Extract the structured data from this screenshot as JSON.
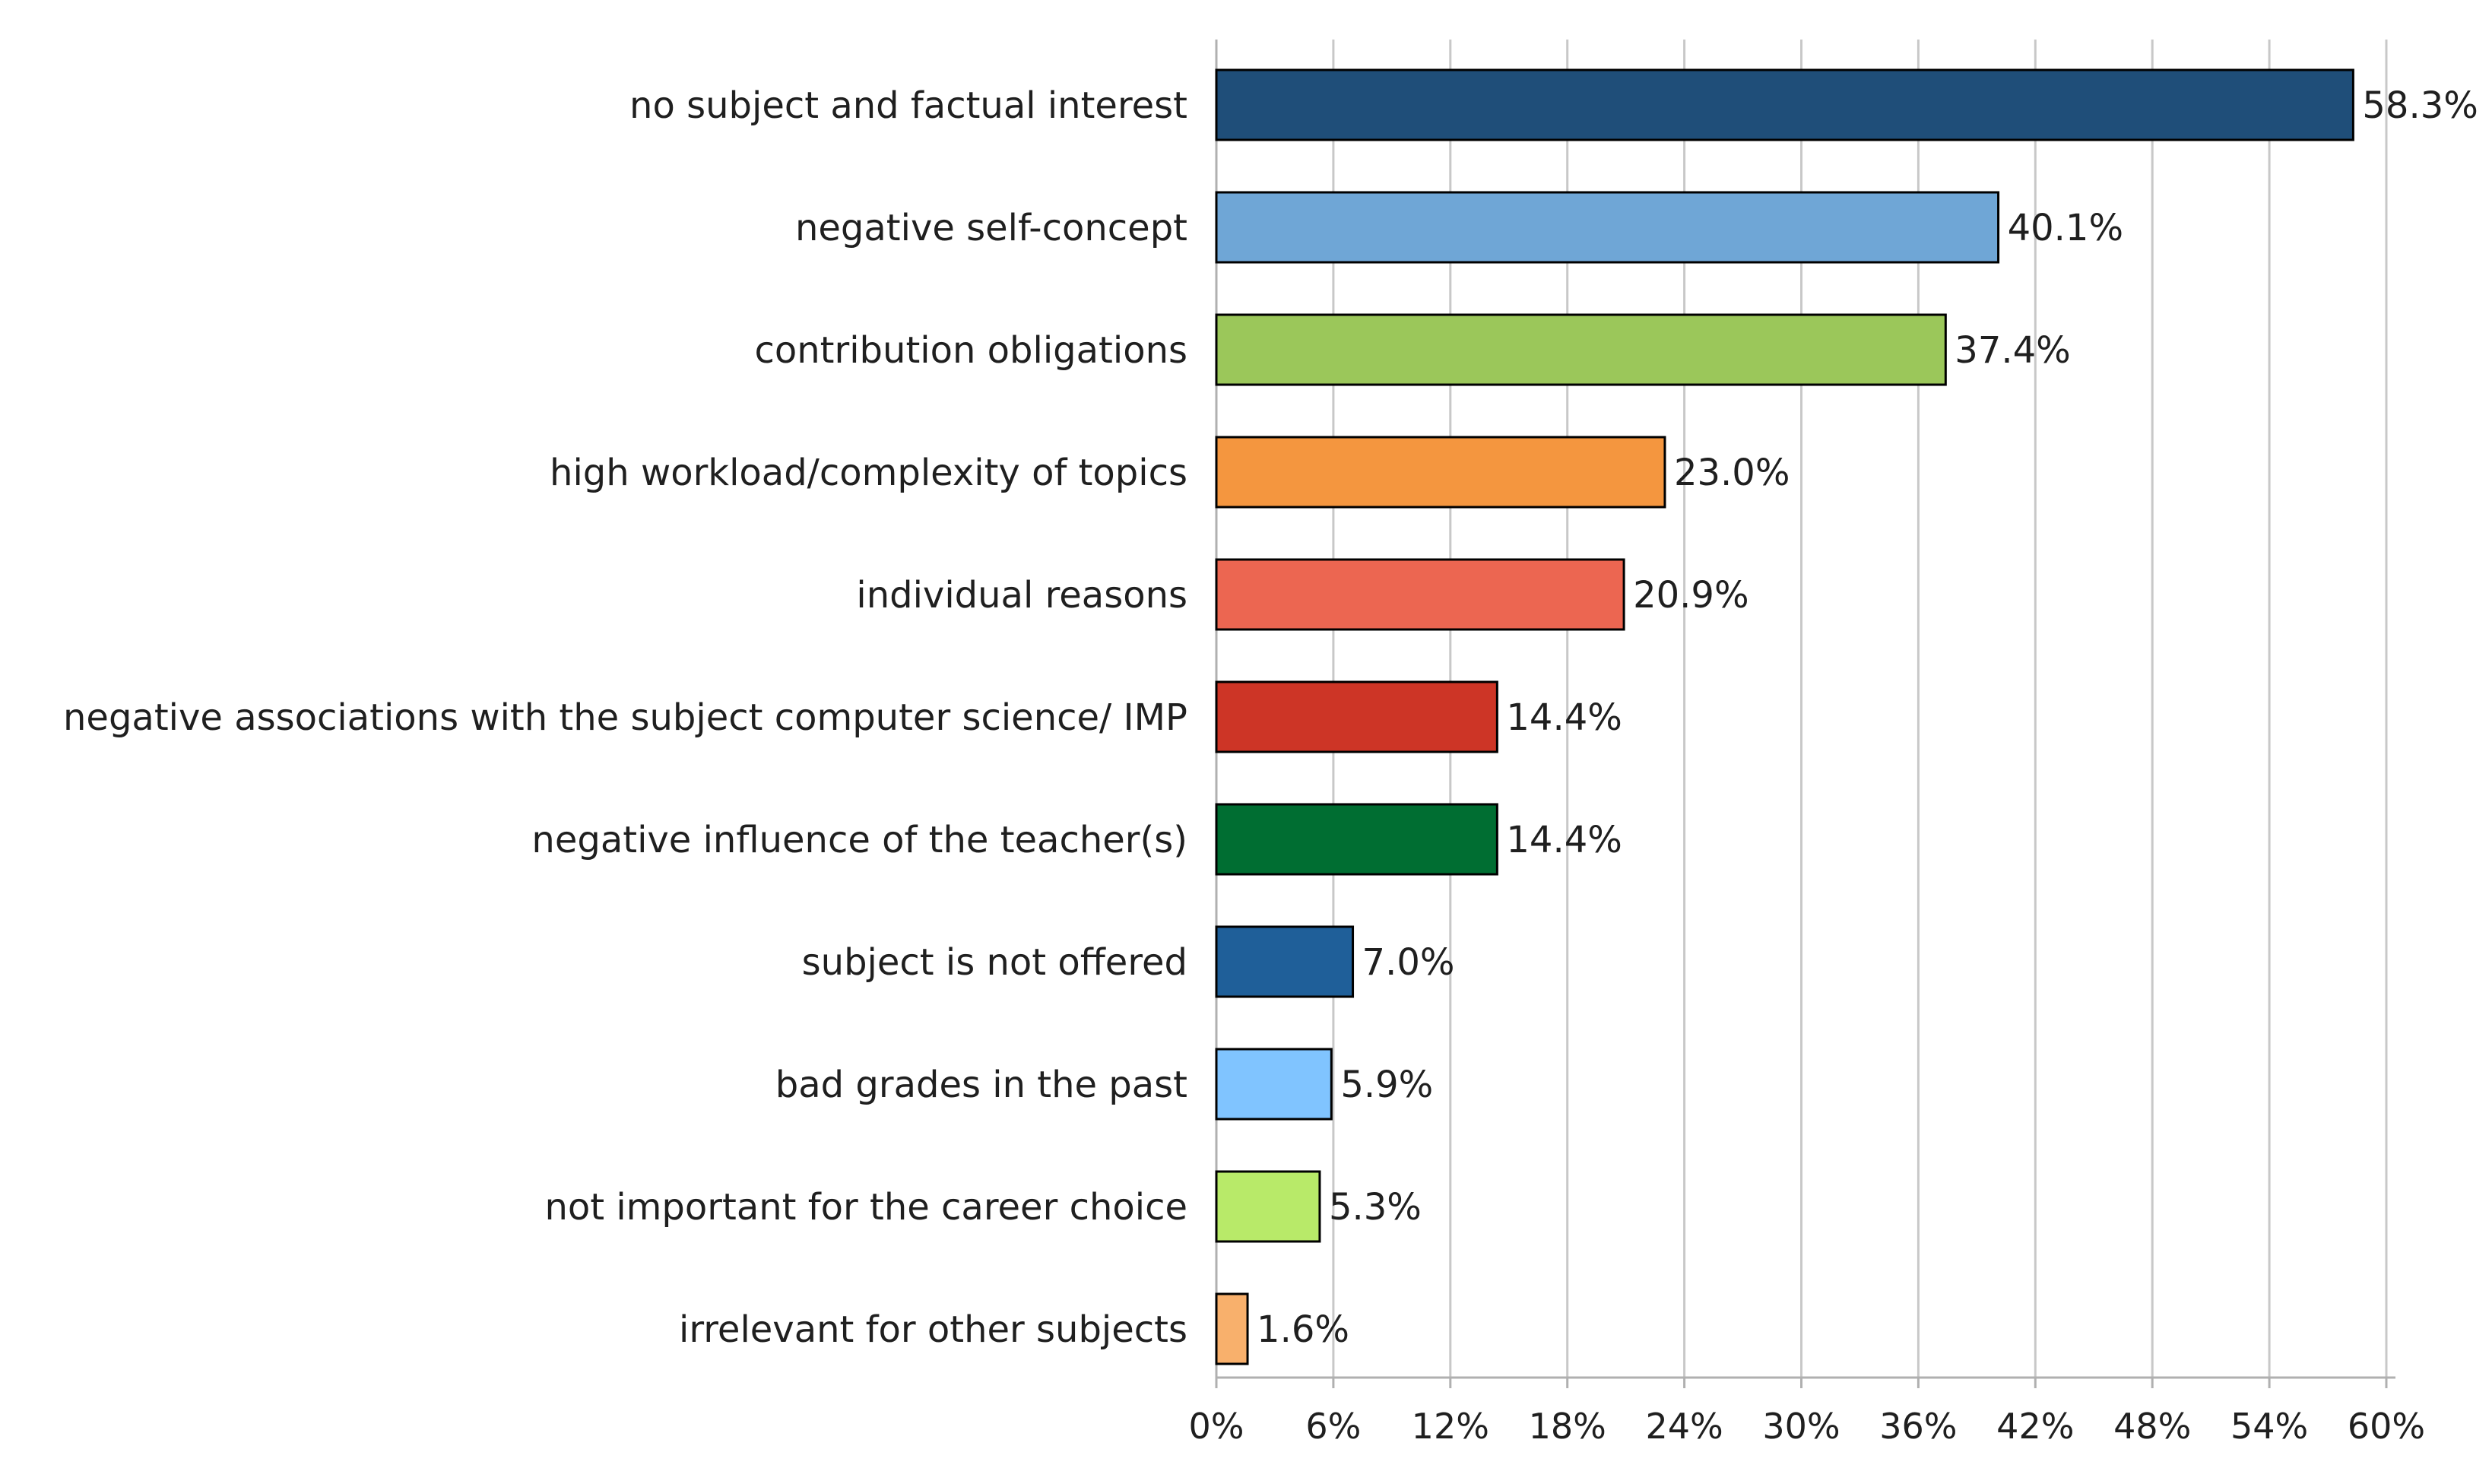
{
  "chart_data": {
    "type": "bar",
    "orientation": "horizontal",
    "title": "",
    "xlabel": "",
    "ylabel": "",
    "xlim": [
      0,
      60
    ],
    "x_ticks": [
      0,
      6,
      12,
      18,
      24,
      30,
      36,
      42,
      48,
      54,
      60
    ],
    "x_tick_labels": [
      "0%",
      "6%",
      "12%",
      "18%",
      "24%",
      "30%",
      "36%",
      "42%",
      "48%",
      "54%",
      "60%"
    ],
    "grid": "vertical",
    "legend": "none",
    "categories": [
      "no subject and factual interest",
      "negative self-concept",
      "contribution obligations",
      "high workload/complexity of topics",
      "individual reasons",
      "negative associations with the subject computer science/ IMP",
      "negative influence of the teacher(s)",
      "subject is not offered",
      "bad grades in the past",
      "not important for the career choice",
      "irrelevant for other subjects"
    ],
    "values": [
      58.3,
      40.1,
      37.4,
      23.0,
      20.9,
      14.4,
      14.4,
      7.0,
      5.9,
      5.3,
      1.6
    ],
    "value_labels": [
      "58.3%",
      "40.1%",
      "37.4%",
      "23.0%",
      "20.9%",
      "14.4%",
      "14.4%",
      "7.0%",
      "5.9%",
      "5.3%",
      "1.6%"
    ],
    "colors": [
      "#1f4e79",
      "#6fa6d6",
      "#9bc75a",
      "#f4963f",
      "#ec6651",
      "#cd3526",
      "#006e32",
      "#1f5f99",
      "#80c4ff",
      "#b8ea69",
      "#f8b06c"
    ]
  }
}
